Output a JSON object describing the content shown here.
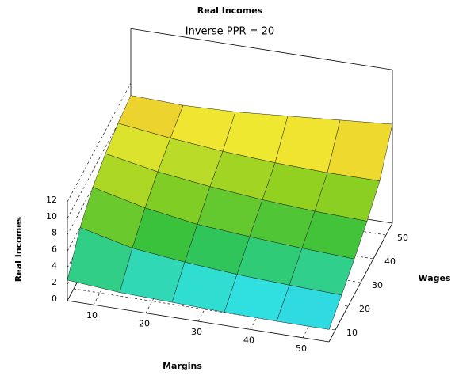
{
  "chart_data": {
    "type": "surface",
    "title": "Real Incomes",
    "subtitle": "Inverse PPR = 20",
    "x_label": "Margins",
    "y_label": "Wages",
    "z_label": "Real Incomes",
    "x": [
      5,
      15,
      25,
      35,
      45,
      55
    ],
    "y": [
      5,
      15,
      25,
      35,
      45,
      55
    ],
    "z": [
      [
        2.5,
        2,
        1.8,
        1.6,
        1.5,
        1.5
      ],
      [
        6,
        4.5,
        3.8,
        3.3,
        3,
        2.8
      ],
      [
        8,
        6.5,
        5.5,
        5,
        4.6,
        4.3
      ],
      [
        9.2,
        8,
        7.2,
        6.6,
        6.2,
        6
      ],
      [
        10,
        9.2,
        8.6,
        8.2,
        8,
        8
      ],
      [
        10.5,
        10.3,
        10.5,
        11,
        11.5,
        12
      ]
    ],
    "xlim": [
      5,
      55
    ],
    "ylim": [
      5,
      55
    ],
    "zlim": [
      0,
      12
    ],
    "xticks": [
      10,
      20,
      30,
      40,
      50
    ],
    "yticks": [
      10,
      20,
      30,
      40,
      50
    ],
    "zticks": [
      0,
      2,
      4,
      6,
      8,
      10,
      12
    ],
    "colormap": [
      "#20a8f0",
      "#30e0e0",
      "#30c040",
      "#90d020",
      "#f0e830",
      "#e06a20"
    ]
  }
}
